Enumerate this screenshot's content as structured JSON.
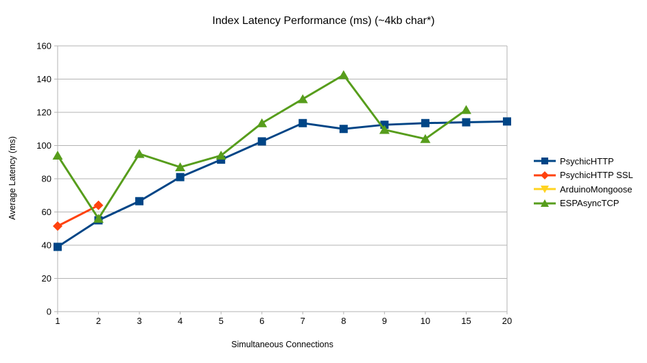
{
  "title": "Index Latency Performance (ms) (~4kb char*)",
  "chart_data": {
    "type": "line",
    "title": "Index Latency Performance (ms) (~4kb char*)",
    "xlabel": "Simultaneous Connections",
    "ylabel": "Average Latency (ms)",
    "categories": [
      "1",
      "2",
      "3",
      "4",
      "5",
      "6",
      "7",
      "8",
      "9",
      "10",
      "15",
      "20"
    ],
    "ylim": [
      0,
      160
    ],
    "y_ticks": [
      0,
      20,
      40,
      60,
      80,
      100,
      120,
      140,
      160
    ],
    "grid": true,
    "legend_position": "right",
    "axis_color": "#b3b3b3",
    "background_color": "#ffffff",
    "series": [
      {
        "name": "PsychicHTTP",
        "color": "#004586",
        "marker": "square",
        "values": [
          39,
          55,
          66.5,
          81,
          91.5,
          102.5,
          113.5,
          110,
          112.5,
          113.5,
          114,
          114.5
        ]
      },
      {
        "name": "PsychicHTTP SSL",
        "color": "#ff420e",
        "marker": "diamond",
        "values": [
          51.5,
          64,
          null,
          null,
          null,
          null,
          null,
          null,
          null,
          null,
          null,
          null
        ]
      },
      {
        "name": "ArduinoMongoose",
        "color": "#ffd320",
        "marker": "triangle-down",
        "values": [
          null,
          null,
          null,
          null,
          null,
          null,
          null,
          null,
          null,
          null,
          null,
          null
        ]
      },
      {
        "name": "ESPAsyncTCP",
        "color": "#579d1c",
        "marker": "triangle-up",
        "values": [
          94,
          56,
          95,
          87,
          94,
          113.5,
          128,
          142.5,
          109.5,
          104,
          121.5,
          null
        ]
      }
    ]
  }
}
